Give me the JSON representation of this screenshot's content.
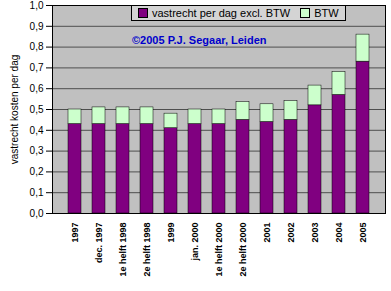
{
  "chart_data": {
    "type": "bar",
    "stacked": true,
    "y_label": "vastrecht kosten per dag",
    "annotations": [
      "©2005 P.J. Segaar, Leiden"
    ],
    "categories": [
      "1997",
      "dec. 1997",
      "1e helft 1998",
      "2e helft 1998",
      "1999",
      "jan. 2000",
      "1e helft 2000",
      "2e helft 2000",
      "2001",
      "2002",
      "2003",
      "2004",
      "2005"
    ],
    "series": [
      {
        "name": "vastrecht per dag excl. BTW",
        "color": "#800080",
        "values": [
          0.43,
          0.43,
          0.43,
          0.43,
          0.41,
          0.43,
          0.43,
          0.45,
          0.44,
          0.45,
          0.52,
          0.57,
          0.73
        ]
      },
      {
        "name": "BTW",
        "color": "#ccffcc",
        "values": [
          0.07,
          0.08,
          0.08,
          0.08,
          0.07,
          0.07,
          0.07,
          0.085,
          0.085,
          0.09,
          0.095,
          0.11,
          0.13
        ]
      }
    ],
    "ylim": [
      0,
      1
    ],
    "yticks": [
      {
        "value": 0,
        "label": "0,0"
      },
      {
        "value": 0.1,
        "label": "0,1"
      },
      {
        "value": 0.2,
        "label": "0,2"
      },
      {
        "value": 0.3,
        "label": "0,3"
      },
      {
        "value": 0.4,
        "label": "0,4"
      },
      {
        "value": 0.5,
        "label": "0,5"
      },
      {
        "value": 0.6,
        "label": "0,6"
      },
      {
        "value": 0.7,
        "label": "0,7"
      },
      {
        "value": 0.8,
        "label": "0,8"
      },
      {
        "value": 0.9,
        "label": "0,9"
      },
      {
        "value": 1,
        "label": "1,0"
      }
    ],
    "grid": true,
    "legend": "top"
  }
}
